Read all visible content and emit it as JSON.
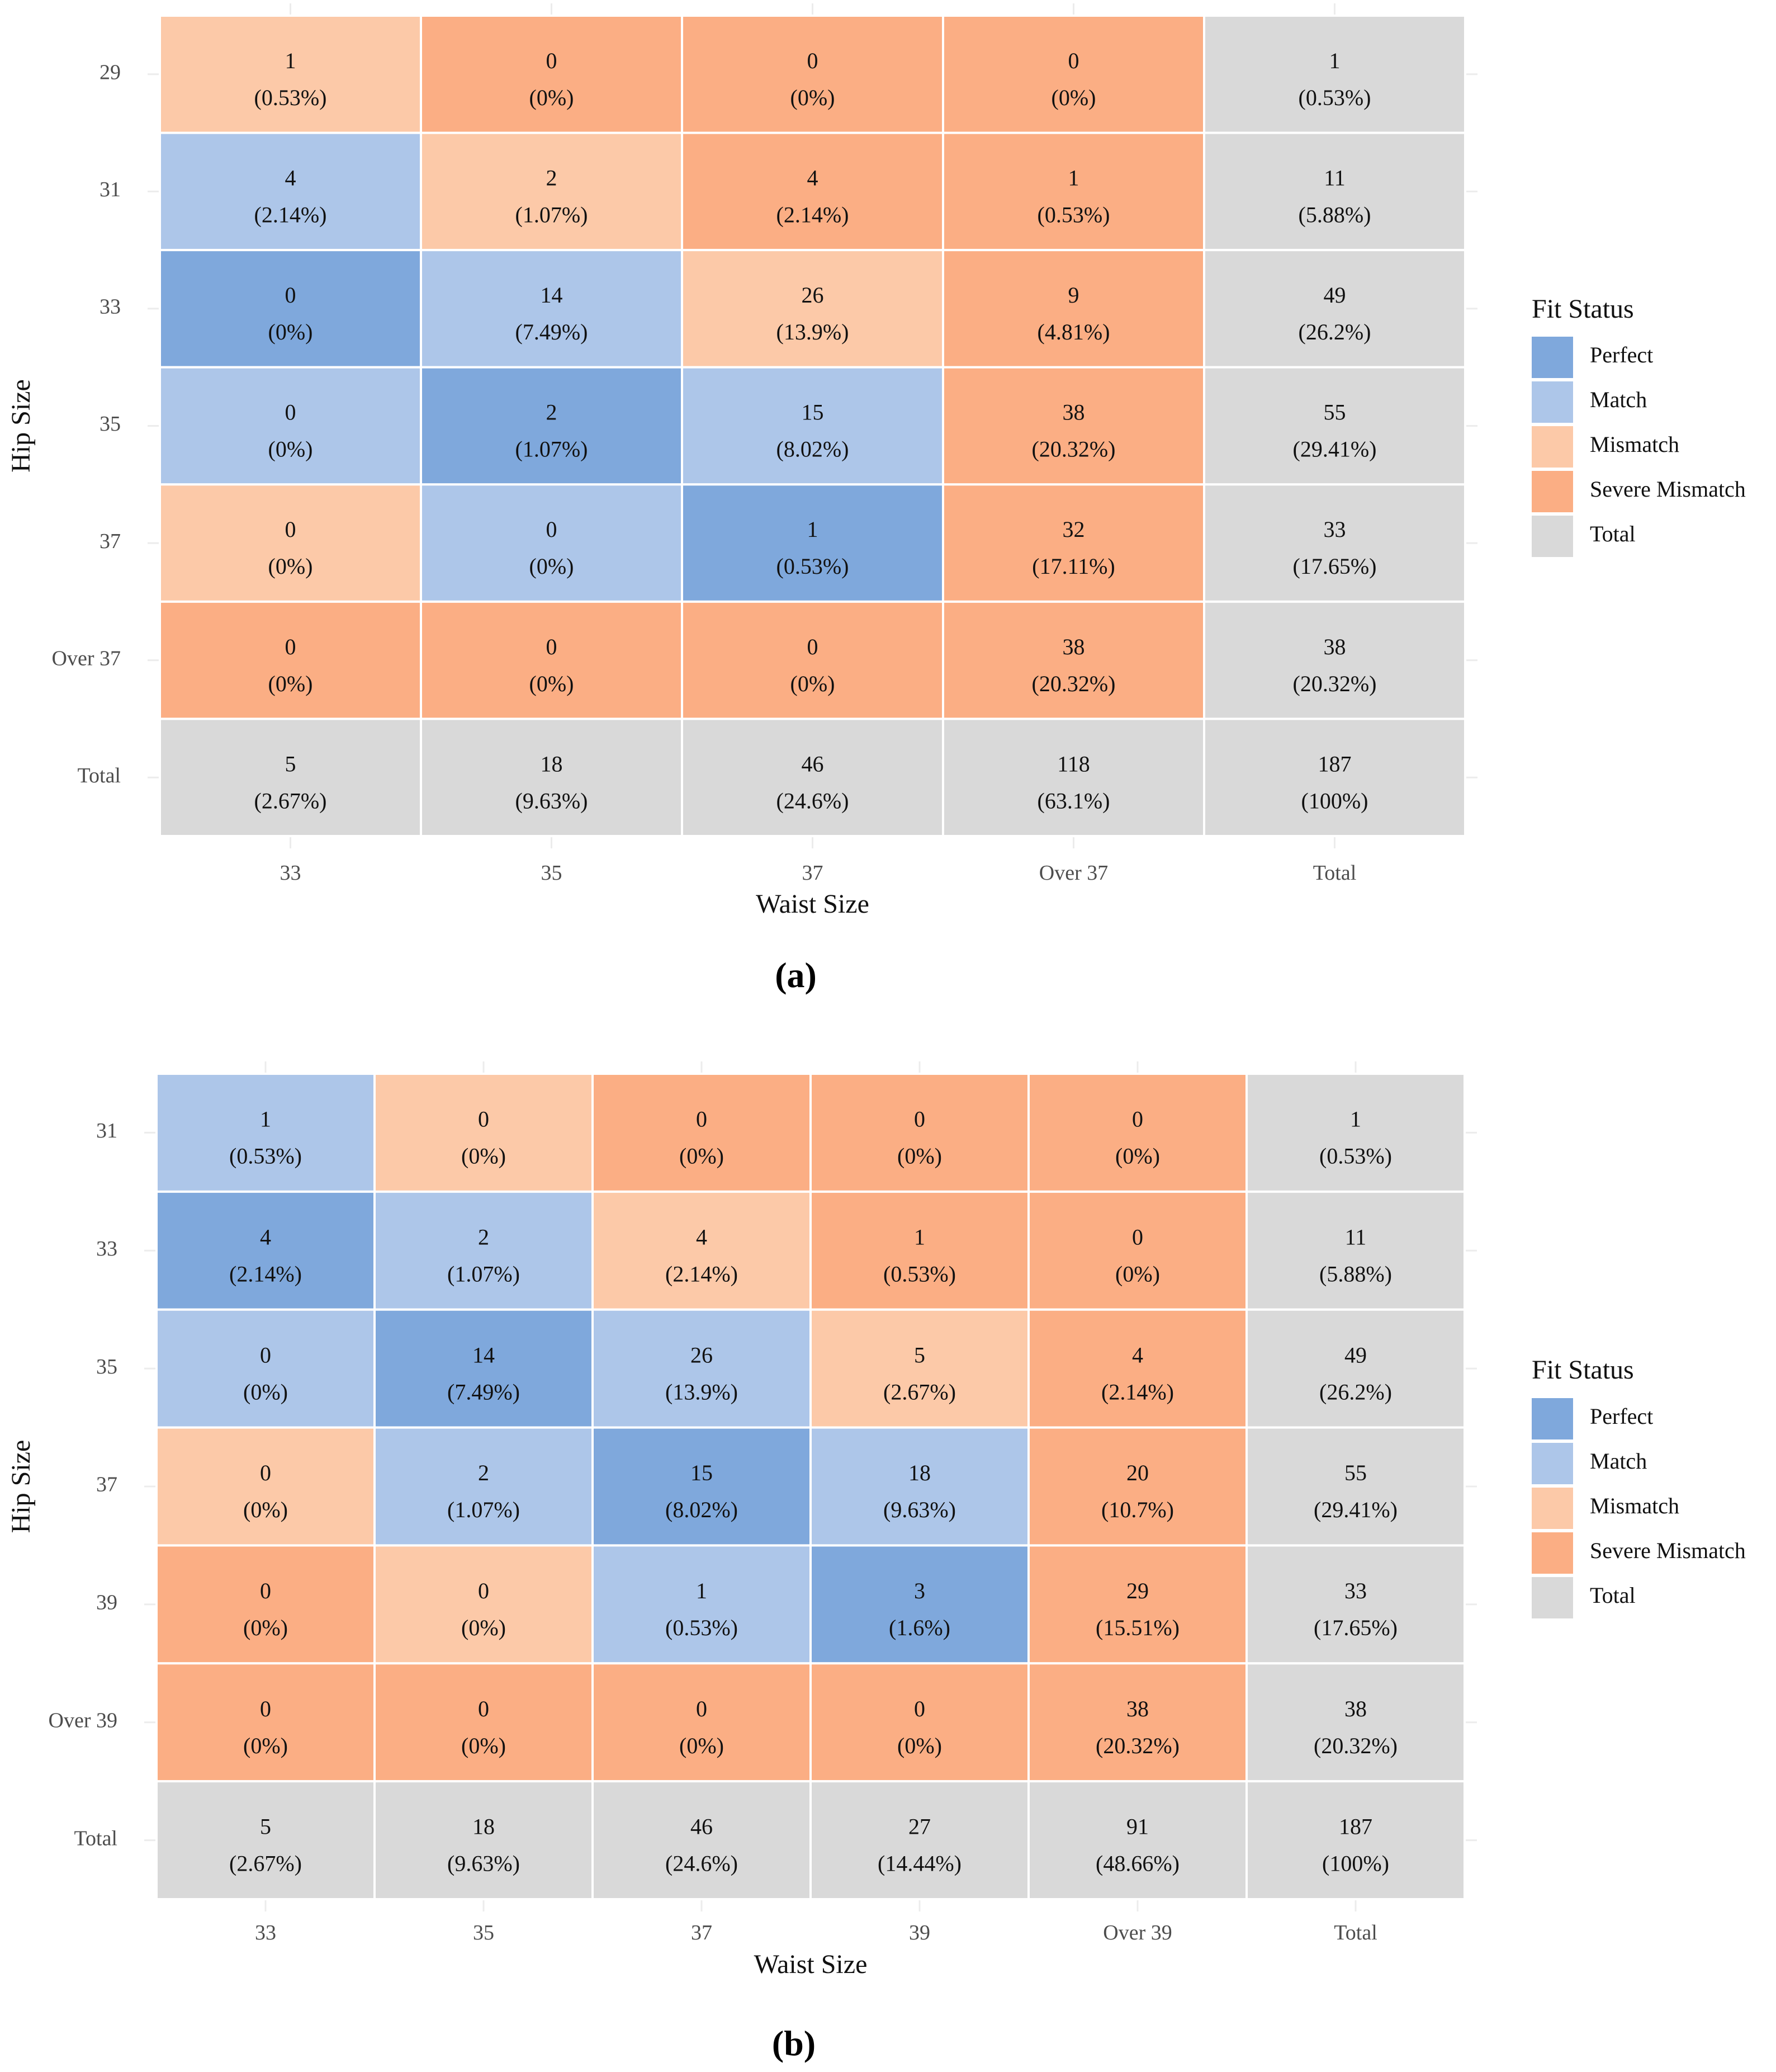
{
  "colors": {
    "Perfect": "#7fa8dc",
    "Match": "#adc6e9",
    "Mismatch": "#fcc9a8",
    "Severe Mismatch": "#fbae84",
    "Total": "#d9d9d9"
  },
  "chart_data": [
    {
      "type": "heatmap",
      "panel_label": "(a)",
      "xlabel": "Waist Size",
      "ylabel": "Hip Size",
      "x_categories": [
        "33",
        "35",
        "37",
        "Over 37",
        "Total"
      ],
      "y_categories": [
        "29",
        "31",
        "33",
        "35",
        "37",
        "Over 37",
        "Total"
      ],
      "legend": {
        "title": "Fit Status",
        "items": [
          "Perfect",
          "Match",
          "Mismatch",
          "Severe Mismatch",
          "Total"
        ]
      },
      "cells": [
        [
          {
            "count": "1",
            "pct": "(0.53%)",
            "status": "Mismatch"
          },
          {
            "count": "0",
            "pct": "(0%)",
            "status": "Severe Mismatch"
          },
          {
            "count": "0",
            "pct": "(0%)",
            "status": "Severe Mismatch"
          },
          {
            "count": "0",
            "pct": "(0%)",
            "status": "Severe Mismatch"
          },
          {
            "count": "1",
            "pct": "(0.53%)",
            "status": "Total"
          }
        ],
        [
          {
            "count": "4",
            "pct": "(2.14%)",
            "status": "Match"
          },
          {
            "count": "2",
            "pct": "(1.07%)",
            "status": "Mismatch"
          },
          {
            "count": "4",
            "pct": "(2.14%)",
            "status": "Severe Mismatch"
          },
          {
            "count": "1",
            "pct": "(0.53%)",
            "status": "Severe Mismatch"
          },
          {
            "count": "11",
            "pct": "(5.88%)",
            "status": "Total"
          }
        ],
        [
          {
            "count": "0",
            "pct": "(0%)",
            "status": "Perfect"
          },
          {
            "count": "14",
            "pct": "(7.49%)",
            "status": "Match"
          },
          {
            "count": "26",
            "pct": "(13.9%)",
            "status": "Mismatch"
          },
          {
            "count": "9",
            "pct": "(4.81%)",
            "status": "Severe Mismatch"
          },
          {
            "count": "49",
            "pct": "(26.2%)",
            "status": "Total"
          }
        ],
        [
          {
            "count": "0",
            "pct": "(0%)",
            "status": "Match"
          },
          {
            "count": "2",
            "pct": "(1.07%)",
            "status": "Perfect"
          },
          {
            "count": "15",
            "pct": "(8.02%)",
            "status": "Match"
          },
          {
            "count": "38",
            "pct": "(20.32%)",
            "status": "Severe Mismatch"
          },
          {
            "count": "55",
            "pct": "(29.41%)",
            "status": "Total"
          }
        ],
        [
          {
            "count": "0",
            "pct": "(0%)",
            "status": "Mismatch"
          },
          {
            "count": "0",
            "pct": "(0%)",
            "status": "Match"
          },
          {
            "count": "1",
            "pct": "(0.53%)",
            "status": "Perfect"
          },
          {
            "count": "32",
            "pct": "(17.11%)",
            "status": "Severe Mismatch"
          },
          {
            "count": "33",
            "pct": "(17.65%)",
            "status": "Total"
          }
        ],
        [
          {
            "count": "0",
            "pct": "(0%)",
            "status": "Severe Mismatch"
          },
          {
            "count": "0",
            "pct": "(0%)",
            "status": "Severe Mismatch"
          },
          {
            "count": "0",
            "pct": "(0%)",
            "status": "Severe Mismatch"
          },
          {
            "count": "38",
            "pct": "(20.32%)",
            "status": "Severe Mismatch"
          },
          {
            "count": "38",
            "pct": "(20.32%)",
            "status": "Total"
          }
        ],
        [
          {
            "count": "5",
            "pct": "(2.67%)",
            "status": "Total"
          },
          {
            "count": "18",
            "pct": "(9.63%)",
            "status": "Total"
          },
          {
            "count": "46",
            "pct": "(24.6%)",
            "status": "Total"
          },
          {
            "count": "118",
            "pct": "(63.1%)",
            "status": "Total"
          },
          {
            "count": "187",
            "pct": "(100%)",
            "status": "Total"
          }
        ]
      ]
    },
    {
      "type": "heatmap",
      "panel_label": "(b)",
      "xlabel": "Waist Size",
      "ylabel": "Hip Size",
      "x_categories": [
        "33",
        "35",
        "37",
        "39",
        "Over 39",
        "Total"
      ],
      "y_categories": [
        "31",
        "33",
        "35",
        "37",
        "39",
        "Over 39",
        "Total"
      ],
      "legend": {
        "title": "Fit Status",
        "items": [
          "Perfect",
          "Match",
          "Mismatch",
          "Severe Mismatch",
          "Total"
        ]
      },
      "cells": [
        [
          {
            "count": "1",
            "pct": "(0.53%)",
            "status": "Match"
          },
          {
            "count": "0",
            "pct": "(0%)",
            "status": "Mismatch"
          },
          {
            "count": "0",
            "pct": "(0%)",
            "status": "Severe Mismatch"
          },
          {
            "count": "0",
            "pct": "(0%)",
            "status": "Severe Mismatch"
          },
          {
            "count": "0",
            "pct": "(0%)",
            "status": "Severe Mismatch"
          },
          {
            "count": "1",
            "pct": "(0.53%)",
            "status": "Total"
          }
        ],
        [
          {
            "count": "4",
            "pct": "(2.14%)",
            "status": "Perfect"
          },
          {
            "count": "2",
            "pct": "(1.07%)",
            "status": "Match"
          },
          {
            "count": "4",
            "pct": "(2.14%)",
            "status": "Mismatch"
          },
          {
            "count": "1",
            "pct": "(0.53%)",
            "status": "Severe Mismatch"
          },
          {
            "count": "0",
            "pct": "(0%)",
            "status": "Severe Mismatch"
          },
          {
            "count": "11",
            "pct": "(5.88%)",
            "status": "Total"
          }
        ],
        [
          {
            "count": "0",
            "pct": "(0%)",
            "status": "Match"
          },
          {
            "count": "14",
            "pct": "(7.49%)",
            "status": "Perfect"
          },
          {
            "count": "26",
            "pct": "(13.9%)",
            "status": "Match"
          },
          {
            "count": "5",
            "pct": "(2.67%)",
            "status": "Mismatch"
          },
          {
            "count": "4",
            "pct": "(2.14%)",
            "status": "Severe Mismatch"
          },
          {
            "count": "49",
            "pct": "(26.2%)",
            "status": "Total"
          }
        ],
        [
          {
            "count": "0",
            "pct": "(0%)",
            "status": "Mismatch"
          },
          {
            "count": "2",
            "pct": "(1.07%)",
            "status": "Match"
          },
          {
            "count": "15",
            "pct": "(8.02%)",
            "status": "Perfect"
          },
          {
            "count": "18",
            "pct": "(9.63%)",
            "status": "Match"
          },
          {
            "count": "20",
            "pct": "(10.7%)",
            "status": "Severe Mismatch"
          },
          {
            "count": "55",
            "pct": "(29.41%)",
            "status": "Total"
          }
        ],
        [
          {
            "count": "0",
            "pct": "(0%)",
            "status": "Severe Mismatch"
          },
          {
            "count": "0",
            "pct": "(0%)",
            "status": "Mismatch"
          },
          {
            "count": "1",
            "pct": "(0.53%)",
            "status": "Match"
          },
          {
            "count": "3",
            "pct": "(1.6%)",
            "status": "Perfect"
          },
          {
            "count": "29",
            "pct": "(15.51%)",
            "status": "Severe Mismatch"
          },
          {
            "count": "33",
            "pct": "(17.65%)",
            "status": "Total"
          }
        ],
        [
          {
            "count": "0",
            "pct": "(0%)",
            "status": "Severe Mismatch"
          },
          {
            "count": "0",
            "pct": "(0%)",
            "status": "Severe Mismatch"
          },
          {
            "count": "0",
            "pct": "(0%)",
            "status": "Severe Mismatch"
          },
          {
            "count": "0",
            "pct": "(0%)",
            "status": "Severe Mismatch"
          },
          {
            "count": "38",
            "pct": "(20.32%)",
            "status": "Severe Mismatch"
          },
          {
            "count": "38",
            "pct": "(20.32%)",
            "status": "Total"
          }
        ],
        [
          {
            "count": "5",
            "pct": "(2.67%)",
            "status": "Total"
          },
          {
            "count": "18",
            "pct": "(9.63%)",
            "status": "Total"
          },
          {
            "count": "46",
            "pct": "(24.6%)",
            "status": "Total"
          },
          {
            "count": "27",
            "pct": "(14.44%)",
            "status": "Total"
          },
          {
            "count": "91",
            "pct": "(48.66%)",
            "status": "Total"
          },
          {
            "count": "187",
            "pct": "(100%)",
            "status": "Total"
          }
        ]
      ]
    }
  ]
}
